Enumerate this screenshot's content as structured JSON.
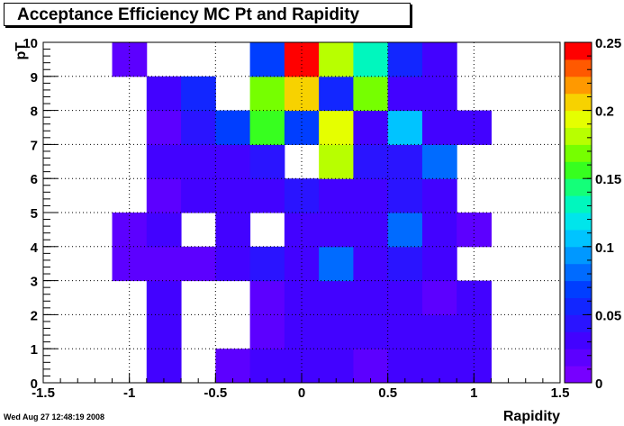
{
  "chart_data": {
    "type": "heatmap",
    "title": "Acceptance Efficiency MC Pt and Rapidity",
    "xlabel": "Rapidity",
    "ylabel": "pT",
    "xlim": [
      -1.5,
      1.5
    ],
    "ylim": [
      0,
      10
    ],
    "zlim": [
      0,
      0.25
    ],
    "x_ticks": [
      "-1.5",
      "-1",
      "-0.5",
      "0",
      "0.5",
      "1",
      "1.5"
    ],
    "y_ticks": [
      "0",
      "1",
      "2",
      "3",
      "4",
      "5",
      "6",
      "7",
      "8",
      "9",
      "10"
    ],
    "z_ticks": [
      "0",
      "0.05",
      "0.1",
      "0.15",
      "0.2",
      "0.25"
    ],
    "grid": true,
    "x_bin_edges": [
      -1.5,
      -1.3,
      -1.1,
      -0.9,
      -0.7,
      -0.5,
      -0.3,
      -0.1,
      0.1,
      0.3,
      0.5,
      0.7,
      0.9,
      1.1,
      1.3,
      1.5
    ],
    "y_bin_edges": [
      0,
      1,
      2,
      3,
      4,
      5,
      6,
      7,
      8,
      9,
      10
    ],
    "values": [
      [
        0,
        0,
        0,
        0.025,
        0,
        0.022,
        0.03,
        0.028,
        0.035,
        0.022,
        0.032,
        0.025,
        0.03,
        0,
        0
      ],
      [
        0,
        0,
        0,
        0.035,
        0,
        0,
        0.022,
        0.03,
        0.025,
        0.025,
        0.03,
        0.03,
        0.025,
        0,
        0
      ],
      [
        0,
        0,
        0,
        0.035,
        0,
        0,
        0.02,
        0.03,
        0.025,
        0.025,
        0.025,
        0.02,
        0.035,
        0,
        0
      ],
      [
        0,
        0,
        0.017,
        0.017,
        0.017,
        0.025,
        0.045,
        0.03,
        0.075,
        0.03,
        0.045,
        0.035,
        0,
        0,
        0
      ],
      [
        0,
        0,
        0.02,
        0.035,
        0,
        0.035,
        0,
        0.025,
        0.025,
        0.035,
        0.075,
        0.035,
        0.02,
        0,
        0
      ],
      [
        0,
        0,
        0,
        0.02,
        0.035,
        0.035,
        0.025,
        0.045,
        0.025,
        0.025,
        0.045,
        0.035,
        0,
        0,
        0
      ],
      [
        0,
        0,
        0,
        0.03,
        0.03,
        0.035,
        0.045,
        0,
        0.175,
        0.045,
        0.045,
        0.075,
        0,
        0,
        0
      ],
      [
        0,
        0,
        0,
        0.02,
        0.045,
        0.065,
        0.15,
        0.065,
        0.19,
        0.035,
        0.11,
        0.025,
        0.025,
        0,
        0
      ],
      [
        0,
        0,
        0,
        0.03,
        0.05,
        0,
        0.17,
        0.21,
        0.05,
        0.17,
        0.035,
        0.03,
        0,
        0,
        0
      ],
      [
        0,
        0,
        0.02,
        0,
        0,
        0,
        0.07,
        0.25,
        0.175,
        0.13,
        0.05,
        0.03,
        0,
        0,
        0
      ]
    ]
  },
  "footer": {
    "datestamp": "Wed Aug 27 12:48:19 2008"
  }
}
